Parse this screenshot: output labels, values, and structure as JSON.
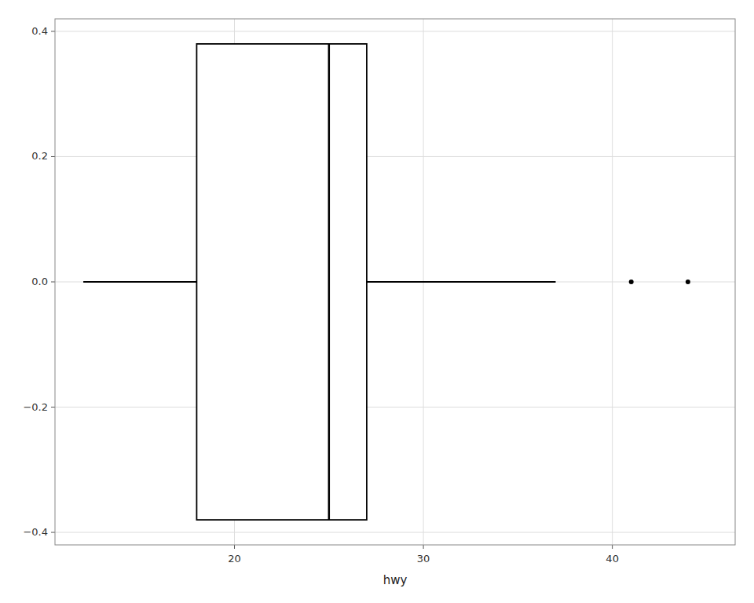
{
  "chart_data": {
    "type": "box",
    "xlabel": "hwy",
    "xlim": [
      10.5,
      46.5
    ],
    "ylim": [
      -0.42,
      0.42
    ],
    "xticks": [
      20,
      30,
      40
    ],
    "yticks": [
      {
        "value": -0.4,
        "label": "−0.4"
      },
      {
        "value": -0.2,
        "label": "−0.2"
      },
      {
        "value": 0.0,
        "label": "0.0"
      },
      0.2,
      0.4
    ],
    "grid": true,
    "color": "#000000",
    "box": {
      "q1": 18,
      "median": 25,
      "q3": 27,
      "whisker_low": 12,
      "whisker_high": 37,
      "ymin": -0.38,
      "ymax": 0.38,
      "center": 0
    },
    "outliers": {
      "x": [
        41,
        44
      ],
      "y": [
        0,
        0
      ]
    }
  }
}
